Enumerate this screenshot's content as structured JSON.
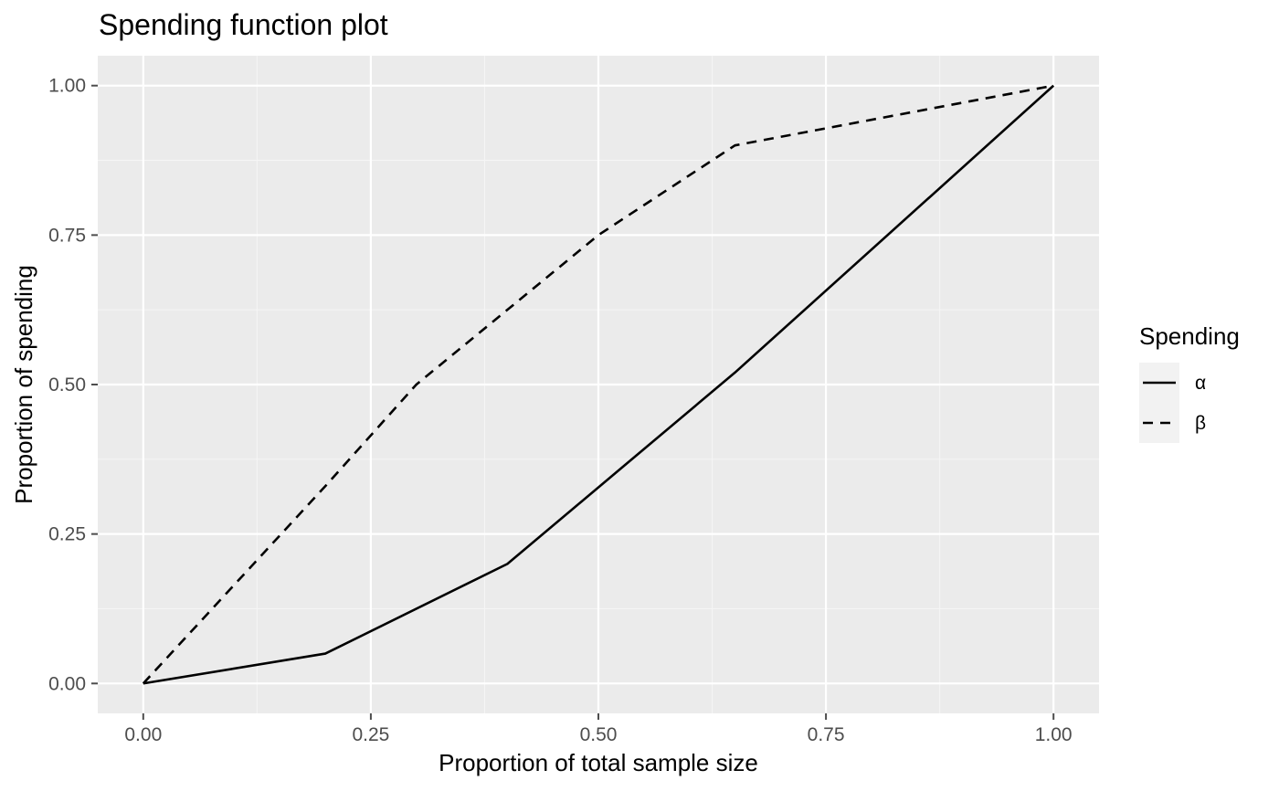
{
  "chart_data": {
    "type": "line",
    "title": "Spending function plot",
    "xlabel": "Proportion of total sample size",
    "ylabel": "Proportion of spending",
    "xlim": [
      0,
      1
    ],
    "ylim": [
      0,
      1
    ],
    "x_ticks": [
      0,
      0.25,
      0.5,
      0.75,
      1
    ],
    "x_tick_labels": [
      "0.00",
      "0.25",
      "0.50",
      "0.75",
      "1.00"
    ],
    "y_ticks": [
      0,
      0.25,
      0.5,
      0.75,
      1
    ],
    "y_tick_labels": [
      "0.00",
      "0.25",
      "0.50",
      "0.75",
      "1.00"
    ],
    "grid": true,
    "legend": {
      "title": "Spending",
      "position": "right"
    },
    "series": [
      {
        "name": "α",
        "linetype": "solid",
        "color": "#000000",
        "points": [
          [
            0,
            0
          ],
          [
            0.2,
            0.05
          ],
          [
            0.4,
            0.2
          ],
          [
            0.65,
            0.52
          ],
          [
            1,
            1
          ]
        ]
      },
      {
        "name": "β",
        "linetype": "dashed",
        "color": "#000000",
        "points": [
          [
            0,
            0
          ],
          [
            0.2,
            0.33
          ],
          [
            0.3,
            0.5
          ],
          [
            0.5,
            0.75
          ],
          [
            0.65,
            0.9
          ],
          [
            1,
            1
          ]
        ]
      }
    ],
    "colors": {
      "panel_background": "#ebebeb",
      "grid_major": "#ffffff",
      "grid_minor": "#f5f5f5",
      "legend_key_background": "#f2f2f2",
      "tick_color": "#4d4d4d"
    }
  }
}
